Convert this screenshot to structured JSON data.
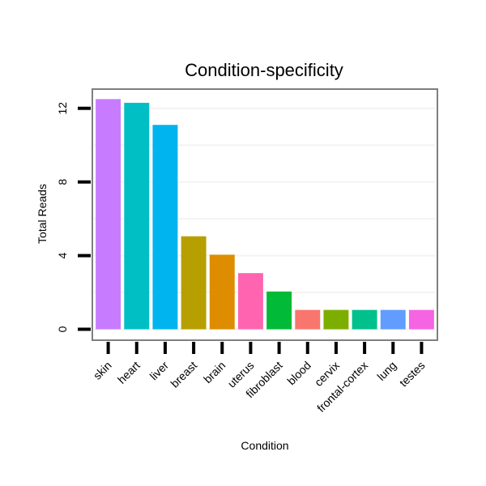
{
  "chart_data": {
    "type": "bar",
    "title": "Condition-specificity",
    "xlabel": "Condition",
    "ylabel": "Total Reads",
    "categories": [
      "skin",
      "heart",
      "liver",
      "breast",
      "brain",
      "uterus",
      "fibroblast",
      "blood",
      "cervix",
      "frontal-cortex",
      "lung",
      "testes"
    ],
    "values": [
      12.5,
      12.3,
      11.1,
      5.05,
      4.05,
      3.05,
      2.05,
      1.05,
      1.05,
      1.05,
      1.05,
      1.05
    ],
    "colors": [
      "#c77cff",
      "#00bfc4",
      "#00b4ef",
      "#b79f00",
      "#de8c00",
      "#ff64b0",
      "#00ba38",
      "#f8766d",
      "#7cae00",
      "#00c08b",
      "#619cff",
      "#f564e3"
    ],
    "yticks": [
      0,
      4,
      8,
      12
    ],
    "ylim": [
      -0.55,
      13.0
    ],
    "grid": true,
    "legend": "none"
  }
}
